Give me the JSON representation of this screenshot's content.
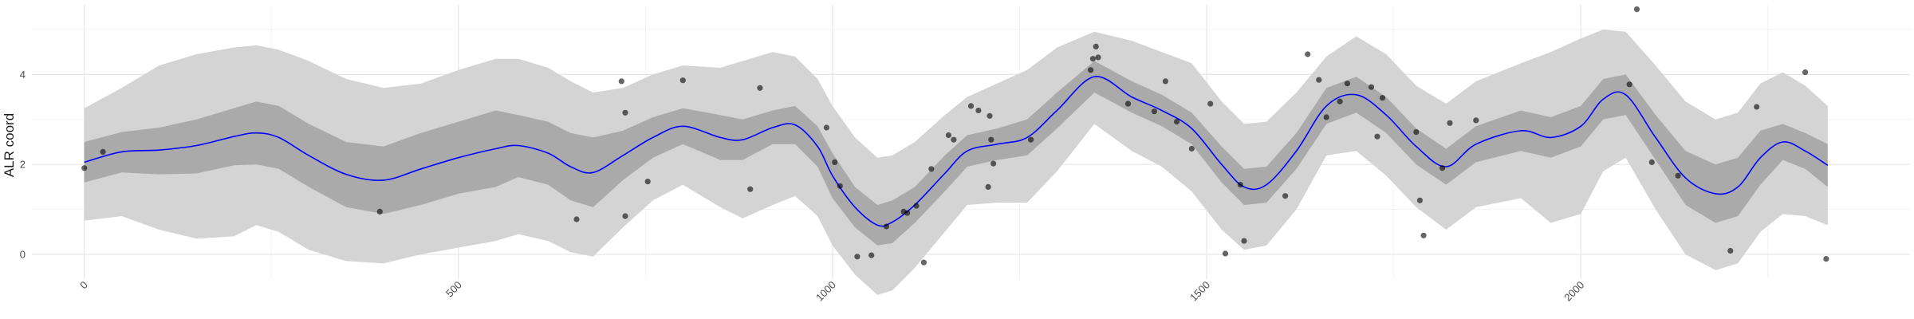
{
  "chart_data": {
    "type": "line",
    "title": "",
    "xlabel": "",
    "ylabel": "ALR coord",
    "xlim": [
      -70,
      2440
    ],
    "ylim": [
      -0.55,
      5.55
    ],
    "x_ticks": [
      0,
      500,
      1000,
      1500,
      2000
    ],
    "x_tick_labels": [
      "0",
      "500",
      "1000",
      "1500",
      "2000"
    ],
    "y_ticks": [
      0,
      2,
      4
    ],
    "y_tick_labels": [
      "0",
      "2",
      "4"
    ],
    "grid": true,
    "legend": "none",
    "x": [
      0,
      50,
      100,
      150,
      200,
      230,
      260,
      300,
      350,
      400,
      450,
      500,
      550,
      580,
      620,
      650,
      680,
      720,
      760,
      800,
      850,
      880,
      920,
      950,
      980,
      1000,
      1030,
      1060,
      1080,
      1110,
      1150,
      1180,
      1220,
      1260,
      1300,
      1350,
      1400,
      1440,
      1480,
      1520,
      1550,
      1580,
      1620,
      1660,
      1700,
      1740,
      1780,
      1820,
      1860,
      1920,
      1960,
      2000,
      2030,
      2060,
      2100,
      2140,
      2180,
      2210,
      2240,
      2270,
      2300,
      2330
    ],
    "series": [
      {
        "role": "fit",
        "color": "#0000ff",
        "values": [
          2.05,
          2.28,
          2.32,
          2.42,
          2.62,
          2.7,
          2.6,
          2.2,
          1.78,
          1.65,
          1.9,
          2.15,
          2.35,
          2.42,
          2.25,
          1.95,
          1.82,
          2.2,
          2.6,
          2.85,
          2.6,
          2.55,
          2.82,
          2.88,
          2.4,
          1.75,
          1.05,
          0.65,
          0.72,
          1.1,
          1.8,
          2.3,
          2.45,
          2.6,
          3.2,
          3.95,
          3.5,
          3.2,
          2.8,
          2.0,
          1.5,
          1.55,
          2.3,
          3.3,
          3.55,
          3.1,
          2.4,
          1.95,
          2.45,
          2.75,
          2.6,
          2.85,
          3.45,
          3.55,
          2.6,
          1.7,
          1.35,
          1.5,
          2.15,
          2.5,
          2.3,
          1.98
        ]
      },
      {
        "role": "inner_band_upper",
        "color": "#aaaaaa",
        "values": [
          2.5,
          2.72,
          2.82,
          3.0,
          3.25,
          3.4,
          3.3,
          2.9,
          2.5,
          2.4,
          2.7,
          2.95,
          3.2,
          3.1,
          2.95,
          2.7,
          2.6,
          2.75,
          3.05,
          3.25,
          3.1,
          3.0,
          3.2,
          3.3,
          2.85,
          2.25,
          1.5,
          1.1,
          1.2,
          1.5,
          2.2,
          2.65,
          2.8,
          3.0,
          3.6,
          4.3,
          3.85,
          3.55,
          3.15,
          2.4,
          1.9,
          1.95,
          2.7,
          3.7,
          3.95,
          3.5,
          2.8,
          2.35,
          2.85,
          3.2,
          3.05,
          3.3,
          3.9,
          4.0,
          3.1,
          2.3,
          2.0,
          2.15,
          2.75,
          2.9,
          2.7,
          2.45
        ]
      },
      {
        "role": "inner_band_lower",
        "color": "#aaaaaa",
        "values": [
          1.6,
          1.82,
          1.78,
          1.8,
          1.98,
          2.0,
          1.9,
          1.5,
          1.05,
          0.9,
          1.1,
          1.35,
          1.5,
          1.72,
          1.55,
          1.2,
          1.05,
          1.65,
          2.15,
          2.45,
          2.1,
          2.1,
          2.45,
          2.45,
          1.95,
          1.25,
          0.6,
          0.2,
          0.25,
          0.7,
          1.4,
          1.95,
          2.1,
          2.2,
          2.8,
          3.6,
          3.15,
          2.85,
          2.45,
          1.6,
          1.1,
          1.15,
          1.9,
          2.9,
          3.15,
          2.7,
          2.0,
          1.55,
          2.05,
          2.3,
          2.15,
          2.4,
          3.0,
          3.1,
          2.1,
          1.1,
          0.7,
          0.85,
          1.55,
          2.1,
          1.9,
          1.5
        ]
      },
      {
        "role": "outer_band_upper",
        "color": "#d4d4d4",
        "values": [
          3.25,
          3.7,
          4.2,
          4.45,
          4.6,
          4.65,
          4.55,
          4.3,
          3.9,
          3.7,
          3.8,
          4.1,
          4.35,
          4.35,
          4.15,
          3.85,
          3.6,
          3.7,
          4.0,
          4.2,
          4.15,
          4.3,
          4.5,
          4.4,
          3.9,
          3.3,
          2.6,
          2.15,
          2.2,
          2.5,
          3.1,
          3.5,
          3.8,
          4.1,
          4.6,
          4.95,
          4.75,
          4.5,
          4.25,
          3.4,
          2.9,
          2.95,
          3.6,
          4.4,
          4.85,
          4.45,
          3.75,
          3.35,
          3.85,
          4.25,
          4.5,
          4.8,
          5.0,
          4.95,
          4.2,
          3.4,
          3.0,
          3.15,
          3.8,
          4.05,
          3.75,
          3.3
        ]
      },
      {
        "role": "outer_band_lower",
        "color": "#d4d4d4",
        "values": [
          0.75,
          0.85,
          0.55,
          0.35,
          0.4,
          0.65,
          0.5,
          0.1,
          -0.15,
          -0.2,
          0.0,
          0.15,
          0.3,
          0.45,
          0.3,
          0.05,
          -0.05,
          0.6,
          1.2,
          1.55,
          1.05,
          0.8,
          1.1,
          1.3,
          0.85,
          0.2,
          -0.45,
          -0.9,
          -0.8,
          -0.3,
          0.5,
          1.1,
          1.15,
          1.15,
          1.85,
          2.9,
          2.3,
          1.95,
          1.4,
          0.55,
          0.1,
          0.2,
          1.0,
          2.2,
          2.3,
          1.75,
          1.05,
          0.55,
          1.05,
          1.25,
          0.7,
          0.9,
          1.85,
          2.15,
          1.0,
          0.0,
          -0.35,
          -0.2,
          0.5,
          0.9,
          0.85,
          0.65
        ]
      }
    ],
    "points": [
      {
        "x": 0,
        "y": 1.92
      },
      {
        "x": 25,
        "y": 2.28
      },
      {
        "x": 395,
        "y": 0.95
      },
      {
        "x": 658,
        "y": 0.78
      },
      {
        "x": 718,
        "y": 3.85
      },
      {
        "x": 723,
        "y": 3.15
      },
      {
        "x": 723,
        "y": 0.85
      },
      {
        "x": 753,
        "y": 1.62
      },
      {
        "x": 800,
        "y": 3.87
      },
      {
        "x": 890,
        "y": 1.45
      },
      {
        "x": 903,
        "y": 3.7
      },
      {
        "x": 992,
        "y": 2.82
      },
      {
        "x": 1003,
        "y": 2.05
      },
      {
        "x": 1010,
        "y": 1.52
      },
      {
        "x": 1033,
        "y": -0.05
      },
      {
        "x": 1052,
        "y": -0.02
      },
      {
        "x": 1072,
        "y": 0.62
      },
      {
        "x": 1095,
        "y": 0.95
      },
      {
        "x": 1100,
        "y": 0.92
      },
      {
        "x": 1112,
        "y": 1.08
      },
      {
        "x": 1122,
        "y": -0.18
      },
      {
        "x": 1132,
        "y": 1.9
      },
      {
        "x": 1155,
        "y": 2.65
      },
      {
        "x": 1162,
        "y": 2.55
      },
      {
        "x": 1185,
        "y": 3.3
      },
      {
        "x": 1195,
        "y": 3.2
      },
      {
        "x": 1208,
        "y": 1.5
      },
      {
        "x": 1210,
        "y": 3.08
      },
      {
        "x": 1212,
        "y": 2.55
      },
      {
        "x": 1215,
        "y": 2.02
      },
      {
        "x": 1265,
        "y": 2.55
      },
      {
        "x": 1345,
        "y": 4.1
      },
      {
        "x": 1348,
        "y": 4.35
      },
      {
        "x": 1352,
        "y": 4.62
      },
      {
        "x": 1355,
        "y": 4.38
      },
      {
        "x": 1395,
        "y": 3.35
      },
      {
        "x": 1430,
        "y": 3.18
      },
      {
        "x": 1445,
        "y": 3.85
      },
      {
        "x": 1460,
        "y": 2.95
      },
      {
        "x": 1480,
        "y": 2.35
      },
      {
        "x": 1505,
        "y": 3.35
      },
      {
        "x": 1525,
        "y": 0.02
      },
      {
        "x": 1545,
        "y": 1.55
      },
      {
        "x": 1550,
        "y": 0.3
      },
      {
        "x": 1605,
        "y": 1.3
      },
      {
        "x": 1635,
        "y": 4.45
      },
      {
        "x": 1650,
        "y": 3.88
      },
      {
        "x": 1660,
        "y": 3.05
      },
      {
        "x": 1678,
        "y": 3.4
      },
      {
        "x": 1688,
        "y": 3.8
      },
      {
        "x": 1720,
        "y": 3.72
      },
      {
        "x": 1728,
        "y": 2.62
      },
      {
        "x": 1735,
        "y": 3.48
      },
      {
        "x": 1780,
        "y": 2.72
      },
      {
        "x": 1785,
        "y": 1.2
      },
      {
        "x": 1790,
        "y": 0.42
      },
      {
        "x": 1815,
        "y": 1.92
      },
      {
        "x": 1825,
        "y": 2.92
      },
      {
        "x": 1860,
        "y": 2.98
      },
      {
        "x": 2065,
        "y": 3.78
      },
      {
        "x": 2075,
        "y": 5.45
      },
      {
        "x": 2095,
        "y": 2.05
      },
      {
        "x": 2130,
        "y": 1.75
      },
      {
        "x": 2200,
        "y": 0.08
      },
      {
        "x": 2235,
        "y": 3.28
      },
      {
        "x": 2300,
        "y": 4.05
      },
      {
        "x": 2328,
        "y": -0.1
      }
    ]
  }
}
